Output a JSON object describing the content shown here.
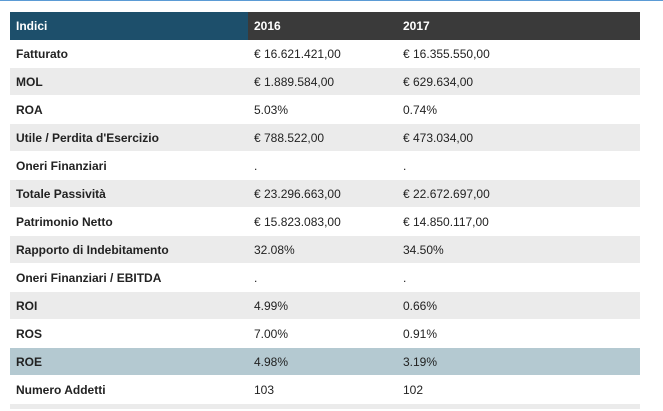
{
  "table": {
    "headers": [
      "Indici",
      "2016",
      "2017"
    ],
    "rows": [
      {
        "label": "Fatturato",
        "v2016": "€ 16.621.421,00",
        "v2017": "€ 16.355.550,00"
      },
      {
        "label": "MOL",
        "v2016": "€ 1.889.584,00",
        "v2017": "€ 629.634,00"
      },
      {
        "label": "ROA",
        "v2016": "5.03%",
        "v2017": "0.74%"
      },
      {
        "label": "Utile / Perdita d'Esercizio",
        "v2016": "€ 788.522,00",
        "v2017": "€ 473.034,00"
      },
      {
        "label": "Oneri Finanziari",
        "v2016": ".",
        "v2017": "."
      },
      {
        "label": "Totale Passività",
        "v2016": "€ 23.296.663,00",
        "v2017": "€ 22.672.697,00"
      },
      {
        "label": "Patrimonio Netto",
        "v2016": "€ 15.823.083,00",
        "v2017": "€ 14.850.117,00"
      },
      {
        "label": "Rapporto di Indebitamento",
        "v2016": "32.08%",
        "v2017": "34.50%"
      },
      {
        "label": "Oneri Finanziari / EBITDA",
        "v2016": ".",
        "v2017": "."
      },
      {
        "label": "ROI",
        "v2016": "4.99%",
        "v2017": "0.66%"
      },
      {
        "label": "ROS",
        "v2016": "7.00%",
        "v2017": "0.91%"
      },
      {
        "label": "ROE",
        "v2016": "4.98%",
        "v2017": "3.19%"
      },
      {
        "label": "Numero Addetti",
        "v2016": "103",
        "v2017": "102"
      }
    ],
    "highlighted_row": "ROE"
  },
  "colors": {
    "header_first": "#1d4f6b",
    "header_rest": "#3a3a3a",
    "row_alt": "#ebebeb",
    "row_highlight": "#b4c9d1"
  }
}
